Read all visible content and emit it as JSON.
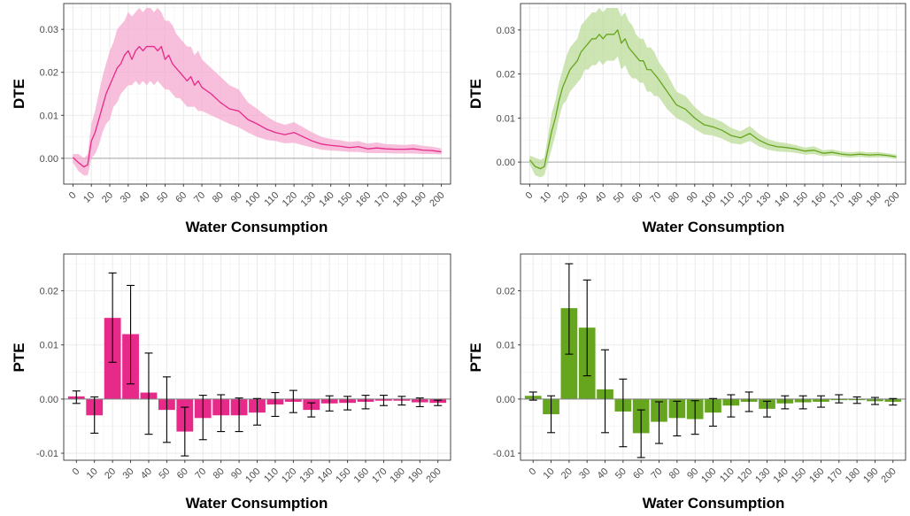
{
  "chart_data": [
    {
      "id": "dte_pink",
      "type": "line",
      "xlabel": "Water Consumption",
      "ylabel": "DTE",
      "xlim": [
        -5,
        205
      ],
      "ylim": [
        -0.006,
        0.036
      ],
      "yticks": [
        0.0,
        0.01,
        0.02,
        0.03
      ],
      "yticklabels": [
        "0.00",
        "0.01",
        "0.02",
        "0.03"
      ],
      "xticks": [
        0,
        10,
        20,
        30,
        40,
        50,
        60,
        70,
        80,
        90,
        100,
        110,
        120,
        130,
        140,
        150,
        160,
        170,
        180,
        190,
        200
      ],
      "xticklabels": [
        "0",
        "10",
        "20",
        "30",
        "40",
        "50",
        "60",
        "70",
        "80",
        "90",
        "100",
        "110",
        "120",
        "130",
        "140",
        "150",
        "160",
        "170",
        "180",
        "190",
        "200"
      ],
      "color": "#e7298a",
      "band_color": "#f4a9cf",
      "reference_line": 0,
      "x": [
        0,
        3,
        6,
        8,
        10,
        12,
        14,
        16,
        18,
        20,
        22,
        24,
        26,
        28,
        30,
        32,
        34,
        36,
        38,
        40,
        42,
        44,
        46,
        48,
        50,
        52,
        54,
        56,
        58,
        60,
        62,
        64,
        66,
        68,
        70,
        75,
        80,
        85,
        90,
        95,
        100,
        105,
        110,
        115,
        120,
        125,
        130,
        135,
        140,
        145,
        150,
        155,
        160,
        165,
        170,
        175,
        180,
        185,
        190,
        195,
        200
      ],
      "y": [
        0.0002,
        -0.001,
        -0.002,
        -0.0015,
        0.004,
        0.006,
        0.009,
        0.012,
        0.015,
        0.017,
        0.019,
        0.021,
        0.022,
        0.024,
        0.025,
        0.023,
        0.025,
        0.026,
        0.025,
        0.026,
        0.026,
        0.026,
        0.025,
        0.026,
        0.023,
        0.024,
        0.022,
        0.021,
        0.02,
        0.019,
        0.018,
        0.019,
        0.017,
        0.018,
        0.0165,
        0.015,
        0.013,
        0.0115,
        0.011,
        0.009,
        0.008,
        0.0068,
        0.006,
        0.0055,
        0.006,
        0.005,
        0.004,
        0.0033,
        0.003,
        0.0028,
        0.0025,
        0.0027,
        0.0022,
        0.0024,
        0.0022,
        0.0021,
        0.0021,
        0.0022,
        0.0019,
        0.0018,
        0.0015
      ],
      "y_low": [
        -0.001,
        -0.003,
        -0.004,
        -0.004,
        0.0,
        0.001,
        0.003,
        0.006,
        0.008,
        0.009,
        0.012,
        0.013,
        0.015,
        0.016,
        0.017,
        0.017,
        0.018,
        0.017,
        0.018,
        0.017,
        0.018,
        0.017,
        0.018,
        0.017,
        0.016,
        0.016,
        0.015,
        0.014,
        0.014,
        0.013,
        0.012,
        0.012,
        0.012,
        0.011,
        0.011,
        0.01,
        0.009,
        0.008,
        0.0072,
        0.006,
        0.005,
        0.0043,
        0.004,
        0.0035,
        0.0036,
        0.003,
        0.0025,
        0.002,
        0.0018,
        0.0017,
        0.0015,
        0.0015,
        0.0012,
        0.0012,
        0.0012,
        0.0011,
        0.0011,
        0.0011,
        0.001,
        0.001,
        0.0009
      ],
      "y_high": [
        0.001,
        0.001,
        0.0,
        0.001,
        0.008,
        0.011,
        0.015,
        0.019,
        0.022,
        0.025,
        0.027,
        0.03,
        0.031,
        0.032,
        0.034,
        0.033,
        0.034,
        0.035,
        0.034,
        0.035,
        0.035,
        0.034,
        0.035,
        0.034,
        0.032,
        0.032,
        0.031,
        0.029,
        0.028,
        0.027,
        0.026,
        0.026,
        0.024,
        0.025,
        0.023,
        0.021,
        0.019,
        0.017,
        0.016,
        0.013,
        0.0115,
        0.0098,
        0.0085,
        0.0078,
        0.0084,
        0.0072,
        0.006,
        0.005,
        0.0045,
        0.0042,
        0.0038,
        0.004,
        0.0034,
        0.0037,
        0.0033,
        0.0032,
        0.0031,
        0.0033,
        0.0029,
        0.0027,
        0.0023
      ]
    },
    {
      "id": "dte_green",
      "type": "line",
      "xlabel": "Water Consumption",
      "ylabel": "DTE",
      "xlim": [
        -5,
        205
      ],
      "ylim": [
        -0.005,
        0.036
      ],
      "yticks": [
        0.0,
        0.01,
        0.02,
        0.03
      ],
      "yticklabels": [
        "0.00",
        "0.01",
        "0.02",
        "0.03"
      ],
      "xticks": [
        0,
        10,
        20,
        30,
        40,
        50,
        60,
        70,
        80,
        90,
        100,
        110,
        120,
        130,
        140,
        150,
        160,
        170,
        180,
        190,
        200
      ],
      "xticklabels": [
        "0",
        "10",
        "20",
        "30",
        "40",
        "50",
        "60",
        "70",
        "80",
        "90",
        "100",
        "110",
        "120",
        "130",
        "140",
        "150",
        "160",
        "170",
        "180",
        "190",
        "200"
      ],
      "color": "#66a61e",
      "band_color": "#bcdb99",
      "reference_line": 0,
      "x": [
        0,
        3,
        6,
        8,
        10,
        12,
        14,
        16,
        18,
        20,
        22,
        24,
        26,
        28,
        30,
        32,
        34,
        36,
        38,
        40,
        42,
        44,
        46,
        48,
        50,
        52,
        54,
        56,
        58,
        60,
        62,
        64,
        66,
        68,
        70,
        75,
        80,
        85,
        90,
        95,
        100,
        105,
        110,
        115,
        120,
        125,
        130,
        135,
        140,
        145,
        150,
        155,
        160,
        165,
        170,
        175,
        180,
        185,
        190,
        195,
        200
      ],
      "y": [
        0.0005,
        -0.001,
        -0.0015,
        -0.001,
        0.003,
        0.007,
        0.01,
        0.014,
        0.017,
        0.019,
        0.021,
        0.022,
        0.023,
        0.025,
        0.026,
        0.027,
        0.028,
        0.028,
        0.029,
        0.028,
        0.029,
        0.029,
        0.029,
        0.03,
        0.027,
        0.028,
        0.026,
        0.025,
        0.024,
        0.023,
        0.023,
        0.021,
        0.021,
        0.02,
        0.019,
        0.016,
        0.013,
        0.012,
        0.01,
        0.0085,
        0.008,
        0.0072,
        0.006,
        0.0055,
        0.0065,
        0.005,
        0.004,
        0.0035,
        0.0033,
        0.003,
        0.0025,
        0.0027,
        0.002,
        0.0022,
        0.0018,
        0.0016,
        0.0018,
        0.0016,
        0.0017,
        0.0015,
        0.0012
      ],
      "y_low": [
        -0.0005,
        -0.003,
        -0.0035,
        -0.003,
        0.0,
        0.003,
        0.006,
        0.01,
        0.013,
        0.014,
        0.016,
        0.017,
        0.018,
        0.019,
        0.021,
        0.021,
        0.022,
        0.022,
        0.023,
        0.022,
        0.023,
        0.023,
        0.023,
        0.024,
        0.021,
        0.022,
        0.02,
        0.019,
        0.019,
        0.018,
        0.018,
        0.016,
        0.016,
        0.015,
        0.015,
        0.012,
        0.01,
        0.009,
        0.0075,
        0.0063,
        0.006,
        0.0053,
        0.0043,
        0.004,
        0.0048,
        0.0036,
        0.0028,
        0.0024,
        0.0023,
        0.0021,
        0.0017,
        0.0018,
        0.0013,
        0.0015,
        0.0012,
        0.001,
        0.0012,
        0.001,
        0.0011,
        0.001,
        0.0007
      ],
      "y_high": [
        0.0015,
        0.001,
        0.0005,
        0.001,
        0.006,
        0.011,
        0.014,
        0.018,
        0.021,
        0.024,
        0.026,
        0.027,
        0.028,
        0.031,
        0.032,
        0.033,
        0.034,
        0.034,
        0.035,
        0.034,
        0.035,
        0.035,
        0.035,
        0.035,
        0.033,
        0.034,
        0.032,
        0.031,
        0.029,
        0.028,
        0.028,
        0.026,
        0.026,
        0.025,
        0.023,
        0.02,
        0.016,
        0.015,
        0.0125,
        0.0107,
        0.01,
        0.0091,
        0.0077,
        0.007,
        0.0082,
        0.0064,
        0.0052,
        0.0046,
        0.0043,
        0.0039,
        0.0033,
        0.0036,
        0.0027,
        0.0029,
        0.0024,
        0.0022,
        0.0024,
        0.0022,
        0.0023,
        0.002,
        0.0017
      ]
    },
    {
      "id": "pte_pink",
      "type": "bar",
      "xlabel": "Water Consumption",
      "ylabel": "PTE",
      "xlim": [
        -7,
        207
      ],
      "ylim": [
        -0.0113,
        0.0268
      ],
      "yticks": [
        -0.01,
        0.0,
        0.01,
        0.02
      ],
      "yticklabels": [
        "-0.01",
        "0.00",
        "0.01",
        "0.02"
      ],
      "xticks": [
        0,
        10,
        20,
        30,
        40,
        50,
        60,
        70,
        80,
        90,
        100,
        110,
        120,
        130,
        140,
        150,
        160,
        170,
        180,
        190,
        200
      ],
      "xticklabels": [
        "0",
        "10",
        "20",
        "30",
        "40",
        "50",
        "60",
        "70",
        "80",
        "90",
        "100",
        "110",
        "120",
        "130",
        "140",
        "150",
        "160",
        "170",
        "180",
        "190",
        "200"
      ],
      "color": "#e7298a",
      "reference_line": 0,
      "categories": [
        0,
        10,
        20,
        30,
        40,
        50,
        60,
        70,
        80,
        90,
        100,
        110,
        120,
        130,
        140,
        150,
        160,
        170,
        180,
        190,
        200
      ],
      "values": [
        0.0005,
        -0.003,
        0.015,
        0.012,
        0.0012,
        -0.002,
        -0.006,
        -0.0035,
        -0.003,
        -0.003,
        -0.0025,
        -0.001,
        -0.0005,
        -0.002,
        -0.0008,
        -0.0007,
        -0.0005,
        -0.0003,
        -0.0003,
        -0.0006,
        -0.0007
      ],
      "err_low": [
        -0.0008,
        -0.0063,
        0.0068,
        0.0028,
        -0.0065,
        -0.008,
        -0.0105,
        -0.0075,
        -0.006,
        -0.006,
        -0.0048,
        -0.0032,
        -0.0025,
        -0.0033,
        -0.0022,
        -0.002,
        -0.0018,
        -0.0012,
        -0.0011,
        -0.0014,
        -0.0012
      ],
      "err_high": [
        0.0015,
        0.0004,
        0.0233,
        0.021,
        0.0085,
        0.0041,
        -0.0015,
        0.0007,
        0.0008,
        0.0002,
        0.0001,
        0.0012,
        0.0016,
        -0.0007,
        0.0006,
        0.0005,
        0.0007,
        0.0007,
        0.0005,
        0.0002,
        -0.0002
      ]
    },
    {
      "id": "pte_green",
      "type": "bar",
      "xlabel": "Water Consumption",
      "ylabel": "PTE",
      "xlim": [
        -7,
        207
      ],
      "ylim": [
        -0.0113,
        0.0268
      ],
      "yticks": [
        -0.01,
        0.0,
        0.01,
        0.02
      ],
      "yticklabels": [
        "-0.01",
        "0.00",
        "0.01",
        "0.02"
      ],
      "xticks": [
        0,
        10,
        20,
        30,
        40,
        50,
        60,
        70,
        80,
        90,
        100,
        110,
        120,
        130,
        140,
        150,
        160,
        170,
        180,
        190,
        200
      ],
      "xticklabels": [
        "0",
        "10",
        "20",
        "30",
        "40",
        "50",
        "60",
        "70",
        "80",
        "90",
        "100",
        "110",
        "120",
        "130",
        "140",
        "150",
        "160",
        "170",
        "180",
        "190",
        "200"
      ],
      "color": "#66a61e",
      "reference_line": 0,
      "categories": [
        0,
        10,
        20,
        30,
        40,
        50,
        60,
        70,
        80,
        90,
        100,
        110,
        120,
        130,
        140,
        150,
        160,
        170,
        180,
        190,
        200
      ],
      "values": [
        0.0006,
        -0.0028,
        0.0168,
        0.0132,
        0.0018,
        -0.0023,
        -0.0063,
        -0.0042,
        -0.0035,
        -0.0037,
        -0.0025,
        -0.0012,
        -0.0005,
        -0.0018,
        -0.0008,
        -0.0006,
        -0.0005,
        -0.0002,
        -0.0002,
        -0.0004,
        -0.0005
      ],
      "err_low": [
        -0.0002,
        -0.0062,
        0.0083,
        0.0043,
        -0.0062,
        -0.0088,
        -0.0108,
        -0.0082,
        -0.0068,
        -0.0065,
        -0.005,
        -0.0033,
        -0.0023,
        -0.0033,
        -0.0018,
        -0.0018,
        -0.0015,
        -0.0007,
        -0.0008,
        -0.001,
        -0.0011
      ],
      "err_high": [
        0.0013,
        0.0006,
        0.025,
        0.022,
        0.0091,
        0.0037,
        -0.002,
        -0.0005,
        -0.0004,
        -0.0003,
        0.0001,
        0.0008,
        0.0013,
        -0.0004,
        0.0006,
        0.0006,
        0.0006,
        0.0008,
        0.0004,
        0.0003,
        0.0001
      ]
    }
  ]
}
